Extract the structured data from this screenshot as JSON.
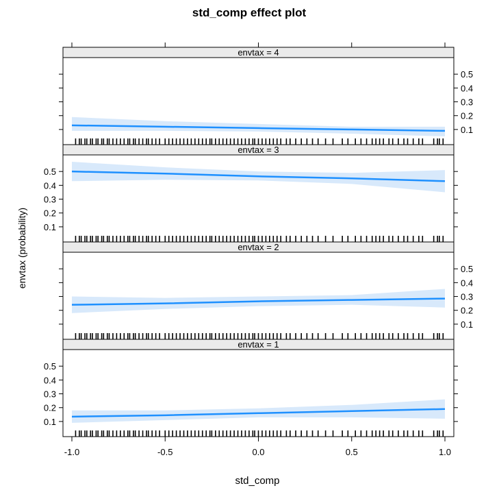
{
  "chart_data": {
    "type": "line",
    "title": "std_comp effect plot",
    "xlabel": "std_comp",
    "ylabel": "envtax (probability)",
    "xlim": [
      -1.0,
      1.0
    ],
    "ylim": [
      0.05,
      0.6
    ],
    "x_ticks": [
      "-1.0",
      "-0.5",
      "0.0",
      "0.5",
      "1.0"
    ],
    "y_ticks": [
      "0.1",
      "0.2",
      "0.3",
      "0.4",
      "0.5"
    ],
    "line_color": "#1E90FF",
    "band_color": "#D8E9FB",
    "panels": [
      {
        "strip": "envtax = 4",
        "x": [
          -1.0,
          -0.5,
          0.0,
          0.5,
          1.0
        ],
        "y": [
          0.13,
          0.12,
          0.11,
          0.1,
          0.09
        ],
        "lower": [
          0.09,
          0.09,
          0.085,
          0.07,
          0.05
        ],
        "upper": [
          0.19,
          0.16,
          0.14,
          0.12,
          0.12
        ]
      },
      {
        "strip": "envtax = 3",
        "x": [
          -1.0,
          -0.5,
          0.0,
          0.5,
          1.0
        ],
        "y": [
          0.5,
          0.485,
          0.465,
          0.45,
          0.43
        ],
        "lower": [
          0.43,
          0.44,
          0.435,
          0.41,
          0.35
        ],
        "upper": [
          0.57,
          0.53,
          0.5,
          0.49,
          0.51
        ]
      },
      {
        "strip": "envtax = 2",
        "x": [
          -1.0,
          -0.5,
          0.0,
          0.5,
          1.0
        ],
        "y": [
          0.24,
          0.25,
          0.265,
          0.275,
          0.285
        ],
        "lower": [
          0.18,
          0.21,
          0.23,
          0.24,
          0.22
        ],
        "upper": [
          0.3,
          0.29,
          0.3,
          0.31,
          0.355
        ]
      },
      {
        "strip": "envtax = 1",
        "x": [
          -1.0,
          -0.5,
          0.0,
          0.5,
          1.0
        ],
        "y": [
          0.135,
          0.145,
          0.16,
          0.175,
          0.19
        ],
        "lower": [
          0.09,
          0.11,
          0.13,
          0.13,
          0.12
        ],
        "upper": [
          0.18,
          0.18,
          0.195,
          0.22,
          0.26
        ]
      }
    ],
    "rug_x": [
      -0.98,
      -0.96,
      -0.95,
      -0.93,
      -0.92,
      -0.9,
      -0.89,
      -0.87,
      -0.86,
      -0.84,
      -0.83,
      -0.81,
      -0.8,
      -0.78,
      -0.76,
      -0.74,
      -0.72,
      -0.7,
      -0.69,
      -0.67,
      -0.66,
      -0.64,
      -0.62,
      -0.6,
      -0.59,
      -0.57,
      -0.55,
      -0.53,
      -0.5,
      -0.48,
      -0.46,
      -0.44,
      -0.42,
      -0.4,
      -0.38,
      -0.36,
      -0.34,
      -0.32,
      -0.3,
      -0.28,
      -0.26,
      -0.25,
      -0.23,
      -0.21,
      -0.19,
      -0.17,
      -0.15,
      -0.13,
      -0.11,
      -0.09,
      -0.07,
      -0.05,
      -0.03,
      -0.02,
      0.0,
      0.02,
      0.04,
      0.06,
      0.08,
      0.1,
      0.12,
      0.15,
      0.17,
      0.2,
      0.23,
      0.26,
      0.29,
      0.32,
      0.36,
      0.4,
      0.45,
      0.48,
      0.52,
      0.55,
      0.58,
      0.61,
      0.63,
      0.65,
      0.67,
      0.7,
      0.72,
      0.75,
      0.78,
      0.8,
      0.83,
      0.86,
      0.88,
      0.94,
      0.96,
      0.97,
      0.99
    ]
  }
}
